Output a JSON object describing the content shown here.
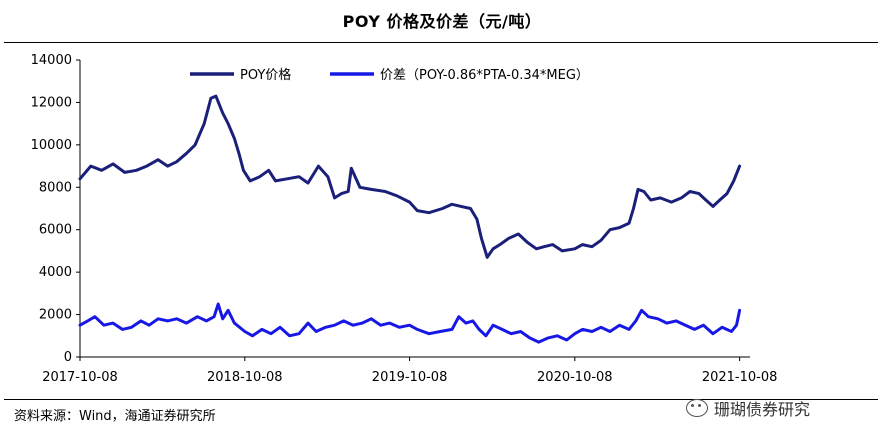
{
  "chart_data": {
    "type": "line",
    "title": "POY 价格及价差（元/吨）",
    "ylim": [
      0,
      14000
    ],
    "yticks": [
      0,
      2000,
      4000,
      6000,
      8000,
      10000,
      12000,
      14000
    ],
    "x_range": [
      "2017-10-08",
      "2021-10-31"
    ],
    "xticks": [
      "2017-10-08",
      "2018-10-08",
      "2019-10-08",
      "2020-10-08",
      "2021-10-08"
    ],
    "legend_position": "top",
    "series": [
      {
        "name": "POY价格",
        "color": "#1a1f7a",
        "points": [
          [
            "2017-10-08",
            8400
          ],
          [
            "2017-11-01",
            9000
          ],
          [
            "2017-11-25",
            8800
          ],
          [
            "2017-12-20",
            9100
          ],
          [
            "2018-01-15",
            8700
          ],
          [
            "2018-02-10",
            8800
          ],
          [
            "2018-03-05",
            9000
          ],
          [
            "2018-03-30",
            9300
          ],
          [
            "2018-04-20",
            9000
          ],
          [
            "2018-05-10",
            9200
          ],
          [
            "2018-06-01",
            9600
          ],
          [
            "2018-06-20",
            10000
          ],
          [
            "2018-07-10",
            11000
          ],
          [
            "2018-07-25",
            12200
          ],
          [
            "2018-08-05",
            12300
          ],
          [
            "2018-08-20",
            11500
          ],
          [
            "2018-09-01",
            11000
          ],
          [
            "2018-09-15",
            10300
          ],
          [
            "2018-09-25",
            9600
          ],
          [
            "2018-10-05",
            8800
          ],
          [
            "2018-10-20",
            8300
          ],
          [
            "2018-11-10",
            8500
          ],
          [
            "2018-11-30",
            8800
          ],
          [
            "2018-12-15",
            8300
          ],
          [
            "2019-01-10",
            8400
          ],
          [
            "2019-02-05",
            8500
          ],
          [
            "2019-02-25",
            8200
          ],
          [
            "2019-03-20",
            9000
          ],
          [
            "2019-04-10",
            8500
          ],
          [
            "2019-04-25",
            7500
          ],
          [
            "2019-05-10",
            7700
          ],
          [
            "2019-05-25",
            7800
          ],
          [
            "2019-06-01",
            8900
          ],
          [
            "2019-06-20",
            8000
          ],
          [
            "2019-07-15",
            7900
          ],
          [
            "2019-08-15",
            7800
          ],
          [
            "2019-09-10",
            7600
          ],
          [
            "2019-10-08",
            7300
          ],
          [
            "2019-10-25",
            6900
          ],
          [
            "2019-11-20",
            6800
          ],
          [
            "2019-12-20",
            7000
          ],
          [
            "2020-01-10",
            7200
          ],
          [
            "2020-01-30",
            7100
          ],
          [
            "2020-02-20",
            7000
          ],
          [
            "2020-03-05",
            6500
          ],
          [
            "2020-03-15",
            5600
          ],
          [
            "2020-03-28",
            4700
          ],
          [
            "2020-04-10",
            5100
          ],
          [
            "2020-04-25",
            5300
          ],
          [
            "2020-05-15",
            5600
          ],
          [
            "2020-06-05",
            5800
          ],
          [
            "2020-06-25",
            5400
          ],
          [
            "2020-07-15",
            5100
          ],
          [
            "2020-08-01",
            5200
          ],
          [
            "2020-08-20",
            5300
          ],
          [
            "2020-09-10",
            5000
          ],
          [
            "2020-10-08",
            5100
          ],
          [
            "2020-10-25",
            5300
          ],
          [
            "2020-11-15",
            5200
          ],
          [
            "2020-12-05",
            5500
          ],
          [
            "2020-12-25",
            6000
          ],
          [
            "2021-01-15",
            6100
          ],
          [
            "2021-02-05",
            6300
          ],
          [
            "2021-02-15",
            7000
          ],
          [
            "2021-02-25",
            7900
          ],
          [
            "2021-03-10",
            7800
          ],
          [
            "2021-03-25",
            7400
          ],
          [
            "2021-04-15",
            7500
          ],
          [
            "2021-05-10",
            7300
          ],
          [
            "2021-06-01",
            7500
          ],
          [
            "2021-06-20",
            7800
          ],
          [
            "2021-07-10",
            7700
          ],
          [
            "2021-07-25",
            7400
          ],
          [
            "2021-08-10",
            7100
          ],
          [
            "2021-08-25",
            7400
          ],
          [
            "2021-09-10",
            7700
          ],
          [
            "2021-09-25",
            8300
          ],
          [
            "2021-10-08",
            9000
          ]
        ]
      },
      {
        "name": "价差（POY-0.86*PTA-0.34*MEG）",
        "color": "#1818e6",
        "points": [
          [
            "2017-10-08",
            1500
          ],
          [
            "2017-10-25",
            1700
          ],
          [
            "2017-11-10",
            1900
          ],
          [
            "2017-11-30",
            1500
          ],
          [
            "2017-12-20",
            1600
          ],
          [
            "2018-01-10",
            1300
          ],
          [
            "2018-01-30",
            1400
          ],
          [
            "2018-02-20",
            1700
          ],
          [
            "2018-03-10",
            1500
          ],
          [
            "2018-03-30",
            1800
          ],
          [
            "2018-04-20",
            1700
          ],
          [
            "2018-05-10",
            1800
          ],
          [
            "2018-06-01",
            1600
          ],
          [
            "2018-06-25",
            1900
          ],
          [
            "2018-07-15",
            1700
          ],
          [
            "2018-08-01",
            1900
          ],
          [
            "2018-08-10",
            2500
          ],
          [
            "2018-08-20",
            1800
          ],
          [
            "2018-09-01",
            2200
          ],
          [
            "2018-09-15",
            1600
          ],
          [
            "2018-10-08",
            1200
          ],
          [
            "2018-10-25",
            1000
          ],
          [
            "2018-11-15",
            1300
          ],
          [
            "2018-12-05",
            1100
          ],
          [
            "2018-12-25",
            1400
          ],
          [
            "2019-01-15",
            1000
          ],
          [
            "2019-02-05",
            1100
          ],
          [
            "2019-02-25",
            1600
          ],
          [
            "2019-03-15",
            1200
          ],
          [
            "2019-04-05",
            1400
          ],
          [
            "2019-04-25",
            1500
          ],
          [
            "2019-05-15",
            1700
          ],
          [
            "2019-06-05",
            1500
          ],
          [
            "2019-06-25",
            1600
          ],
          [
            "2019-07-15",
            1800
          ],
          [
            "2019-08-05",
            1500
          ],
          [
            "2019-08-25",
            1600
          ],
          [
            "2019-09-15",
            1400
          ],
          [
            "2019-10-08",
            1500
          ],
          [
            "2019-10-25",
            1300
          ],
          [
            "2019-11-20",
            1100
          ],
          [
            "2019-12-15",
            1200
          ],
          [
            "2020-01-10",
            1300
          ],
          [
            "2020-01-25",
            1900
          ],
          [
            "2020-02-10",
            1600
          ],
          [
            "2020-02-25",
            1700
          ],
          [
            "2020-03-10",
            1300
          ],
          [
            "2020-03-25",
            1000
          ],
          [
            "2020-04-10",
            1500
          ],
          [
            "2020-04-30",
            1300
          ],
          [
            "2020-05-20",
            1100
          ],
          [
            "2020-06-10",
            1200
          ],
          [
            "2020-06-30",
            900
          ],
          [
            "2020-07-20",
            700
          ],
          [
            "2020-08-10",
            900
          ],
          [
            "2020-08-30",
            1000
          ],
          [
            "2020-09-20",
            800
          ],
          [
            "2020-10-08",
            1100
          ],
          [
            "2020-10-25",
            1300
          ],
          [
            "2020-11-15",
            1200
          ],
          [
            "2020-12-05",
            1400
          ],
          [
            "2020-12-25",
            1200
          ],
          [
            "2021-01-15",
            1500
          ],
          [
            "2021-02-05",
            1300
          ],
          [
            "2021-02-20",
            1700
          ],
          [
            "2021-03-05",
            2200
          ],
          [
            "2021-03-20",
            1900
          ],
          [
            "2021-04-10",
            1800
          ],
          [
            "2021-04-30",
            1600
          ],
          [
            "2021-05-20",
            1700
          ],
          [
            "2021-06-10",
            1500
          ],
          [
            "2021-06-30",
            1300
          ],
          [
            "2021-07-20",
            1500
          ],
          [
            "2021-08-10",
            1100
          ],
          [
            "2021-08-30",
            1400
          ],
          [
            "2021-09-20",
            1200
          ],
          [
            "2021-10-01",
            1500
          ],
          [
            "2021-10-08",
            2200
          ]
        ]
      }
    ]
  },
  "footer": {
    "source": "资料来源：Wind，海通证券研究所",
    "watermark": "珊瑚债券研究"
  }
}
